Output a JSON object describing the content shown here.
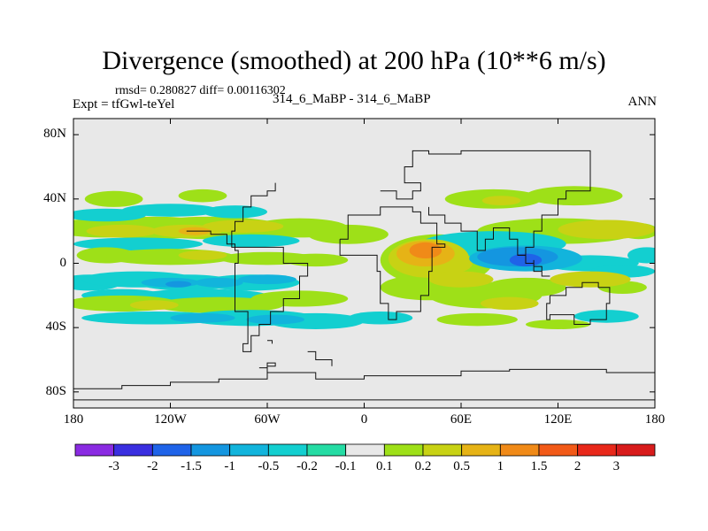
{
  "title": "Divergence (smoothed) at 200 hPa (10**6 m/s)",
  "stats_line": "rmsd= 0.280827 diff= 0.00116302",
  "expt_line": "Expt = tfGwl-teYel",
  "case_line": "314_6_MaBP - 314_6_MaBP",
  "period": "ANN",
  "chart_data": {
    "type": "contour_map",
    "title": "Divergence (smoothed) at 200 hPa (10**6 m/s)",
    "variable": "divergence difference",
    "units": "10**6 m/s",
    "x_ticks": [
      "180",
      "120W",
      "60W",
      "0",
      "60E",
      "120E",
      "180"
    ],
    "x_tick_values": [
      -180,
      -120,
      -60,
      0,
      60,
      120,
      180
    ],
    "y_ticks": [
      "80N",
      "40N",
      "0",
      "40S",
      "80S"
    ],
    "y_tick_values": [
      80,
      40,
      0,
      -40,
      -80
    ],
    "xlim": [
      -180,
      180
    ],
    "ylim": [
      -90,
      90
    ],
    "colorbar": {
      "labels": [
        "-3",
        "-2",
        "-1.5",
        "-1",
        "-0.5",
        "-0.2",
        "-0.1",
        "0.1",
        "0.2",
        "0.5",
        "1",
        "1.5",
        "2",
        "3"
      ],
      "levels": [
        -3,
        -2,
        -1.5,
        -1,
        -0.5,
        -0.2,
        -0.1,
        0.1,
        0.2,
        0.5,
        1,
        1.5,
        2,
        3
      ],
      "colors": [
        "#8a2be2",
        "#3a2fe0",
        "#1f63e8",
        "#1496e0",
        "#12b4dc",
        "#13cfd0",
        "#25dca4",
        "#e8e8e8",
        "#9ee018",
        "#c8d214",
        "#e6b316",
        "#f08a18",
        "#f25a18",
        "#e8281a",
        "#d81c1c"
      ]
    },
    "background_color": "#e8e8e8",
    "features": [
      {
        "name": "tropical band 20N",
        "lon": [
          -180,
          180
        ],
        "lat": [
          18,
          28
        ],
        "levels": [
          0.2,
          0.5,
          1
        ]
      },
      {
        "name": "tropical band 10S",
        "lon": [
          -180,
          180
        ],
        "lat": [
          -18,
          -6
        ],
        "levels": [
          -0.2,
          -0.5,
          -1
        ]
      },
      {
        "name": "maximum over Africa",
        "lon": 40,
        "lat": 2,
        "value": 1.5
      },
      {
        "name": "minimum over Asia",
        "lon": 100,
        "lat": 2,
        "value": -1.5
      },
      {
        "name": "southern band 30S",
        "lon": [
          -180,
          20
        ],
        "lat": [
          -38,
          -28
        ],
        "levels": [
          -0.2,
          -0.5
        ]
      }
    ]
  }
}
